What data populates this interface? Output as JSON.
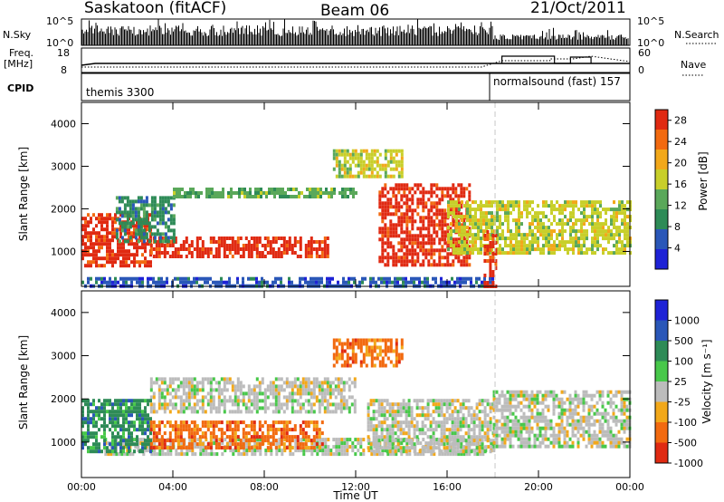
{
  "header": {
    "station": "Saskatoon (fitACF)",
    "beam": "Beam 06",
    "date": "21/Oct/2011"
  },
  "panels": {
    "nsky": {
      "label": "N.Sky",
      "ticks": [
        "10^5",
        "10^0"
      ],
      "right_ticks": [
        "10^5",
        "10^0"
      ],
      "right_label": "N.Search"
    },
    "freq": {
      "label_line1": "Freq.",
      "label_line2": "[MHz]",
      "ticks": [
        18,
        8
      ],
      "right_ticks": [
        60,
        0
      ],
      "right_label": "Nave"
    },
    "cpid": {
      "label": "CPID",
      "programs": [
        {
          "name": "themis 3300",
          "start_hour": 0,
          "end_hour": 18.1
        },
        {
          "name": "normalsound (fast) 157",
          "start_hour": 18.1,
          "end_hour": 24
        }
      ]
    }
  },
  "chart_data": [
    {
      "type": "heatmap",
      "title": "",
      "xlabel": "Time UT",
      "ylabel": "Slant Range [km]",
      "xlim": [
        0,
        24
      ],
      "ylim": [
        180,
        4500
      ],
      "x_ticks": [
        "00:00",
        "04:00",
        "08:00",
        "12:00",
        "16:00",
        "20:00",
        "00:00"
      ],
      "y_ticks": [
        1000,
        2000,
        3000,
        4000
      ],
      "colorbar": {
        "label": "Power [dB]",
        "ticks": [
          4,
          8,
          12,
          16,
          20,
          24,
          28
        ],
        "range": [
          0,
          30
        ],
        "colors": [
          "#1e22d6",
          "#2a57b8",
          "#2e8b57",
          "#5aa85a",
          "#c8cf2a",
          "#f2a81a",
          "#f26a10",
          "#e02a12"
        ]
      },
      "regions": [
        {
          "name": "near range E-region band",
          "t": [
            0,
            18
          ],
          "range": [
            200,
            400
          ],
          "value": 6
        },
        {
          "name": "morning echo band",
          "t": [
            0,
            3
          ],
          "range": [
            700,
            1900
          ],
          "value": 27
        },
        {
          "name": "main daytime band",
          "t": [
            3,
            10.8
          ],
          "range": [
            850,
            1350
          ],
          "value": 28
        },
        {
          "name": "rising arc",
          "t": [
            1.5,
            4
          ],
          "range": [
            1200,
            2300
          ],
          "value": 9
        },
        {
          "name": "2400 km band",
          "t": [
            4,
            12
          ],
          "range": [
            2300,
            2500
          ],
          "value": 14
        },
        {
          "name": "upper scatter",
          "t": [
            11,
            14
          ],
          "range": [
            2800,
            3400
          ],
          "value": 18
        },
        {
          "name": "afternoon descending arc",
          "t": [
            13,
            17
          ],
          "range": [
            700,
            2600
          ],
          "value": 27
        },
        {
          "name": "evening scatter",
          "t": [
            16,
            24
          ],
          "range": [
            1000,
            2200
          ],
          "value": 17
        },
        {
          "name": "transition burst",
          "t": [
            17.6,
            18.1
          ],
          "range": [
            200,
            1500
          ],
          "value": 29
        }
      ]
    },
    {
      "type": "heatmap",
      "title": "",
      "xlabel": "Time UT",
      "ylabel": "Slant Range [km]",
      "xlim": [
        0,
        24
      ],
      "ylim": [
        180,
        4500
      ],
      "x_ticks": [
        "00:00",
        "04:00",
        "08:00",
        "12:00",
        "16:00",
        "20:00",
        "00:00"
      ],
      "y_ticks": [
        1000,
        2000,
        3000,
        4000
      ],
      "colorbar": {
        "label": "Velocity [m s⁻¹]",
        "ticks": [
          1000,
          500,
          100,
          25,
          -25,
          -100,
          -500,
          -1000
        ],
        "colors": [
          "#1e22d6",
          "#2a57b8",
          "#2e8b57",
          "#48c84a",
          "#bcbcbc",
          "#f2a81a",
          "#f26a10",
          "#e02a12"
        ]
      },
      "regions": [
        {
          "name": "ground scatter band",
          "t": [
            1,
            18
          ],
          "range": [
            700,
            1100
          ],
          "value": 0
        },
        {
          "name": "ground scatter arc",
          "t": [
            3,
            12
          ],
          "range": [
            1700,
            2500
          ],
          "value": 0
        },
        {
          "name": "morning flow",
          "t": [
            0,
            3
          ],
          "range": [
            800,
            2000
          ],
          "value": 300
        },
        {
          "name": "daytime flow",
          "t": [
            3,
            10.5
          ],
          "range": [
            900,
            1500
          ],
          "value": -200
        },
        {
          "name": "upper scatter",
          "t": [
            11,
            14
          ],
          "range": [
            2800,
            3400
          ],
          "value": -150
        },
        {
          "name": "afternoon ground scatter",
          "t": [
            12.5,
            18
          ],
          "range": [
            800,
            2000
          ],
          "value": 0
        },
        {
          "name": "evening ground scatter",
          "t": [
            18,
            24
          ],
          "range": [
            900,
            2200
          ],
          "value": 0
        }
      ]
    }
  ]
}
